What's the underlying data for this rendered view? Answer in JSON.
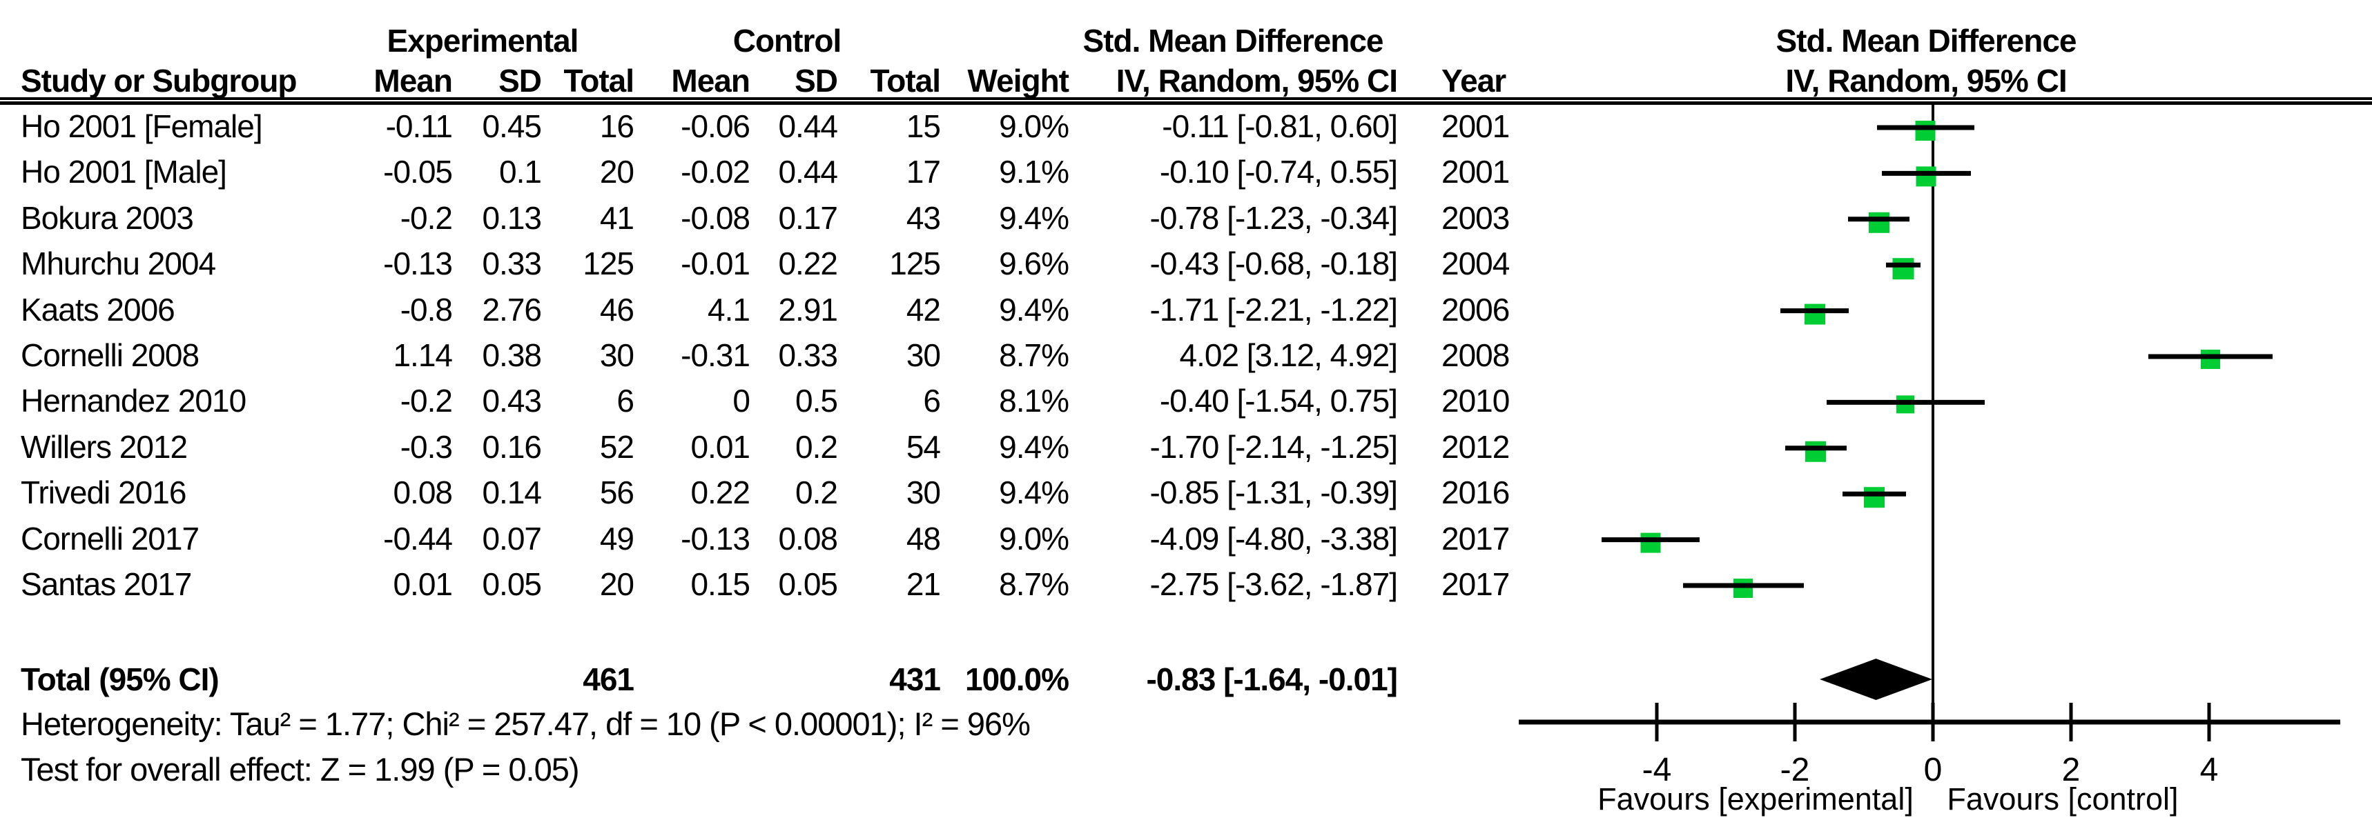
{
  "chart_data": {
    "type": "forest",
    "group_headers": {
      "experimental": "Experimental",
      "control": "Control",
      "smd": "Std. Mean Difference"
    },
    "column_headers": {
      "study": "Study or Subgroup",
      "exp_mean": "Mean",
      "exp_sd": "SD",
      "exp_total": "Total",
      "ctl_mean": "Mean",
      "ctl_sd": "SD",
      "ctl_total": "Total",
      "weight": "Weight",
      "ci": "IV, Random, 95% CI",
      "year": "Year"
    },
    "plot_headers": {
      "line1": "Std. Mean Difference",
      "line2": "IV, Random, 95% CI"
    },
    "studies": [
      {
        "study": "Ho 2001 [Female]",
        "exp_mean": "-0.11",
        "exp_sd": "0.45",
        "exp_total": "16",
        "ctl_mean": "-0.06",
        "ctl_sd": "0.44",
        "ctl_total": "15",
        "weight": "9.0%",
        "ci": "-0.11 [-0.81, 0.60]",
        "year": "2001",
        "est": -0.11,
        "lo": -0.81,
        "hi": 0.6,
        "weight_pct": 9.0
      },
      {
        "study": "Ho 2001 [Male]",
        "exp_mean": "-0.05",
        "exp_sd": "0.1",
        "exp_total": "20",
        "ctl_mean": "-0.02",
        "ctl_sd": "0.44",
        "ctl_total": "17",
        "weight": "9.1%",
        "ci": "-0.10 [-0.74, 0.55]",
        "year": "2001",
        "est": -0.1,
        "lo": -0.74,
        "hi": 0.55,
        "weight_pct": 9.1
      },
      {
        "study": "Bokura 2003",
        "exp_mean": "-0.2",
        "exp_sd": "0.13",
        "exp_total": "41",
        "ctl_mean": "-0.08",
        "ctl_sd": "0.17",
        "ctl_total": "43",
        "weight": "9.4%",
        "ci": "-0.78 [-1.23, -0.34]",
        "year": "2003",
        "est": -0.78,
        "lo": -1.23,
        "hi": -0.34,
        "weight_pct": 9.4
      },
      {
        "study": "Mhurchu 2004",
        "exp_mean": "-0.13",
        "exp_sd": "0.33",
        "exp_total": "125",
        "ctl_mean": "-0.01",
        "ctl_sd": "0.22",
        "ctl_total": "125",
        "weight": "9.6%",
        "ci": "-0.43 [-0.68, -0.18]",
        "year": "2004",
        "est": -0.43,
        "lo": -0.68,
        "hi": -0.18,
        "weight_pct": 9.6
      },
      {
        "study": "Kaats 2006",
        "exp_mean": "-0.8",
        "exp_sd": "2.76",
        "exp_total": "46",
        "ctl_mean": "4.1",
        "ctl_sd": "2.91",
        "ctl_total": "42",
        "weight": "9.4%",
        "ci": "-1.71 [-2.21, -1.22]",
        "year": "2006",
        "est": -1.71,
        "lo": -2.21,
        "hi": -1.22,
        "weight_pct": 9.4
      },
      {
        "study": "Cornelli 2008",
        "exp_mean": "1.14",
        "exp_sd": "0.38",
        "exp_total": "30",
        "ctl_mean": "-0.31",
        "ctl_sd": "0.33",
        "ctl_total": "30",
        "weight": "8.7%",
        "ci": "4.02 [3.12, 4.92]",
        "year": "2008",
        "est": 4.02,
        "lo": 3.12,
        "hi": 4.92,
        "weight_pct": 8.7
      },
      {
        "study": "Hernandez 2010",
        "exp_mean": "-0.2",
        "exp_sd": "0.43",
        "exp_total": "6",
        "ctl_mean": "0",
        "ctl_sd": "0.5",
        "ctl_total": "6",
        "weight": "8.1%",
        "ci": "-0.40 [-1.54, 0.75]",
        "year": "2010",
        "est": -0.4,
        "lo": -1.54,
        "hi": 0.75,
        "weight_pct": 8.1
      },
      {
        "study": "Willers 2012",
        "exp_mean": "-0.3",
        "exp_sd": "0.16",
        "exp_total": "52",
        "ctl_mean": "0.01",
        "ctl_sd": "0.2",
        "ctl_total": "54",
        "weight": "9.4%",
        "ci": "-1.70 [-2.14, -1.25]",
        "year": "2012",
        "est": -1.7,
        "lo": -2.14,
        "hi": -1.25,
        "weight_pct": 9.4
      },
      {
        "study": "Trivedi 2016",
        "exp_mean": "0.08",
        "exp_sd": "0.14",
        "exp_total": "56",
        "ctl_mean": "0.22",
        "ctl_sd": "0.2",
        "ctl_total": "30",
        "weight": "9.4%",
        "ci": "-0.85 [-1.31, -0.39]",
        "year": "2016",
        "est": -0.85,
        "lo": -1.31,
        "hi": -0.39,
        "weight_pct": 9.4
      },
      {
        "study": "Cornelli 2017",
        "exp_mean": "-0.44",
        "exp_sd": "0.07",
        "exp_total": "49",
        "ctl_mean": "-0.13",
        "ctl_sd": "0.08",
        "ctl_total": "48",
        "weight": "9.0%",
        "ci": "-4.09 [-4.80, -3.38]",
        "year": "2017",
        "est": -4.09,
        "lo": -4.8,
        "hi": -3.38,
        "weight_pct": 9.0
      },
      {
        "study": "Santas 2017",
        "exp_mean": "0.01",
        "exp_sd": "0.05",
        "exp_total": "20",
        "ctl_mean": "0.15",
        "ctl_sd": "0.05",
        "ctl_total": "21",
        "weight": "8.7%",
        "ci": "-2.75 [-3.62, -1.87]",
        "year": "2017",
        "est": -2.75,
        "lo": -3.62,
        "hi": -1.87,
        "weight_pct": 8.7
      }
    ],
    "total": {
      "label": "Total (95% CI)",
      "exp_total": "461",
      "ctl_total": "431",
      "weight": "100.0%",
      "ci": "-0.83 [-1.64, -0.01]",
      "est": -0.83,
      "lo": -1.64,
      "hi": -0.01
    },
    "footnotes": {
      "heterogeneity": "Heterogeneity: Tau² = 1.77; Chi² = 257.47, df = 10 (P < 0.00001); I² = 96%",
      "overall_effect": "Test for overall effect: Z = 1.99 (P = 0.05)"
    },
    "axis": {
      "ticks": [
        "-4",
        "-2",
        "0",
        "2",
        "4"
      ],
      "tick_values": [
        -4,
        -2,
        0,
        2,
        4
      ],
      "min": -6,
      "max": 6,
      "favours_left": "Favours [experimental]",
      "favours_right": "Favours [control]"
    },
    "colors": {
      "marker_green": "#00CC33",
      "line_black": "#000000"
    }
  }
}
